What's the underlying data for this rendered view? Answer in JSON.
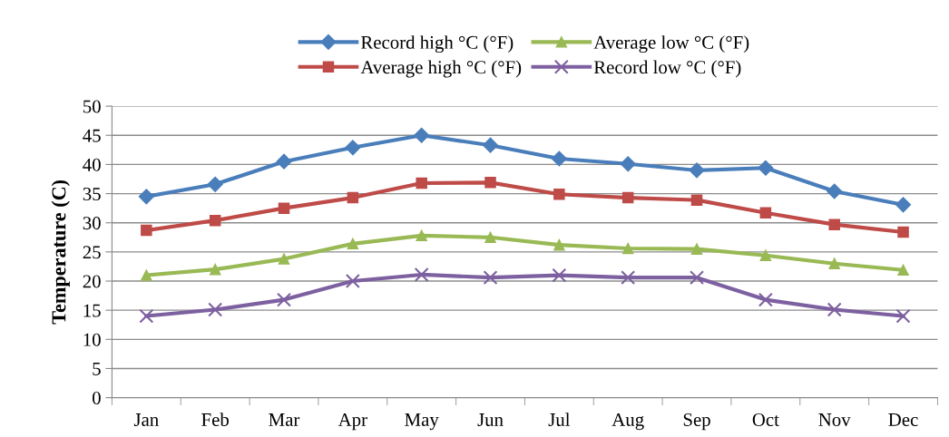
{
  "chart_data": {
    "type": "line",
    "ylabel": "Temperature (C)",
    "categories": [
      "Jan",
      "Feb",
      "Mar",
      "Apr",
      "May",
      "Jun",
      "Jul",
      "Aug",
      "Sep",
      "Oct",
      "Nov",
      "Dec"
    ],
    "series": [
      {
        "name": "Record high °C (°F)",
        "color": "#4a7ebb",
        "marker": "diamond",
        "values": [
          34.5,
          36.6,
          40.5,
          42.9,
          45.0,
          43.3,
          41.0,
          40.1,
          39.0,
          39.4,
          35.4,
          33.1
        ]
      },
      {
        "name": "Average high °C (°F)",
        "color": "#be4b48",
        "marker": "square",
        "values": [
          28.7,
          30.4,
          32.5,
          34.3,
          36.8,
          36.9,
          34.9,
          34.3,
          33.9,
          31.7,
          29.7,
          28.4
        ]
      },
      {
        "name": "Average low °C (°F)",
        "color": "#98b954",
        "marker": "triangle",
        "values": [
          21.0,
          22.0,
          23.8,
          26.4,
          27.8,
          27.5,
          26.2,
          25.6,
          25.5,
          24.4,
          23.0,
          21.9
        ]
      },
      {
        "name": "Record low °C (°F)",
        "color": "#7d60a0",
        "marker": "cross",
        "values": [
          14.0,
          15.1,
          16.8,
          20.0,
          21.1,
          20.6,
          21.0,
          20.6,
          20.6,
          16.8,
          15.1,
          14.0
        ]
      }
    ],
    "ylim": [
      0,
      50
    ],
    "yticks": [
      0,
      5,
      10,
      15,
      20,
      25,
      30,
      35,
      40,
      45,
      50
    ],
    "grid": "y",
    "legend": "top",
    "line_style": "solid"
  }
}
